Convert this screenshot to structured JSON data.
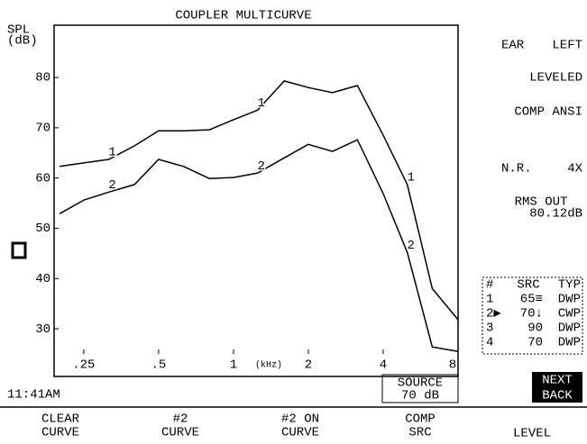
{
  "chart_data": {
    "type": "line",
    "title": "COUPLER MULTICURVE",
    "ylabel": [
      "SPL",
      "(dB)"
    ],
    "xlabel": "(kHz)",
    "log_x": true,
    "x": [
      0.2,
      0.25,
      0.315,
      0.4,
      0.5,
      0.63,
      0.8,
      1,
      1.25,
      1.6,
      2,
      2.5,
      3.15,
      4,
      5,
      6.3,
      8
    ],
    "series": [
      {
        "name": "1",
        "color": "#000000",
        "values": [
          62.3,
          63,
          63.7,
          66.4,
          69.4,
          69.4,
          69.6,
          71.6,
          73.5,
          79.3,
          78,
          77,
          78.4,
          68.5,
          58.7,
          38,
          31.8
        ]
      },
      {
        "name": "2",
        "color": "#000000",
        "values": [
          52.9,
          55.6,
          57.2,
          58.7,
          63.7,
          62.3,
          59.9,
          60.1,
          61,
          64,
          66.7,
          65.3,
          67.6,
          56.9,
          45.2,
          26.4,
          25.5
        ]
      }
    ],
    "xlim": [
      0.19,
      8
    ],
    "ylim": [
      25,
      90.4
    ],
    "xticks": [
      {
        "value": 0.25,
        "label": ".25"
      },
      {
        "value": 0.5,
        "label": ".5"
      },
      1,
      2,
      4,
      8
    ],
    "yticks": [
      30,
      40,
      50,
      60,
      70,
      80
    ],
    "grid": false
  },
  "status": {
    "ear": [
      "EAR",
      "LEFT"
    ],
    "leveled": "LEVELED",
    "comp": "COMP ANSI",
    "nr": [
      "N.R.",
      "4X"
    ],
    "rms": [
      "RMS OUT",
      "80.12dB"
    ]
  },
  "table": {
    "header": [
      "#",
      "SRC",
      "TYP"
    ],
    "rows": [
      [
        "1",
        "65≡",
        "DWP"
      ],
      [
        "2▶",
        "70↓",
        "CWP"
      ],
      [
        "3",
        "90",
        "DWP"
      ],
      [
        "4",
        "70",
        "DWP"
      ]
    ]
  },
  "source": [
    "SOURCE",
    "70 dB"
  ],
  "time": "11:41AM",
  "nav": [
    "NEXT",
    "BACK"
  ],
  "softkeys": [
    [
      "CLEAR",
      "CURVE"
    ],
    [
      "#2",
      "CURVE"
    ],
    [
      "#2 ON",
      "CURVE"
    ],
    [
      "COMP",
      "SRC"
    ],
    [
      "LEVEL"
    ]
  ]
}
